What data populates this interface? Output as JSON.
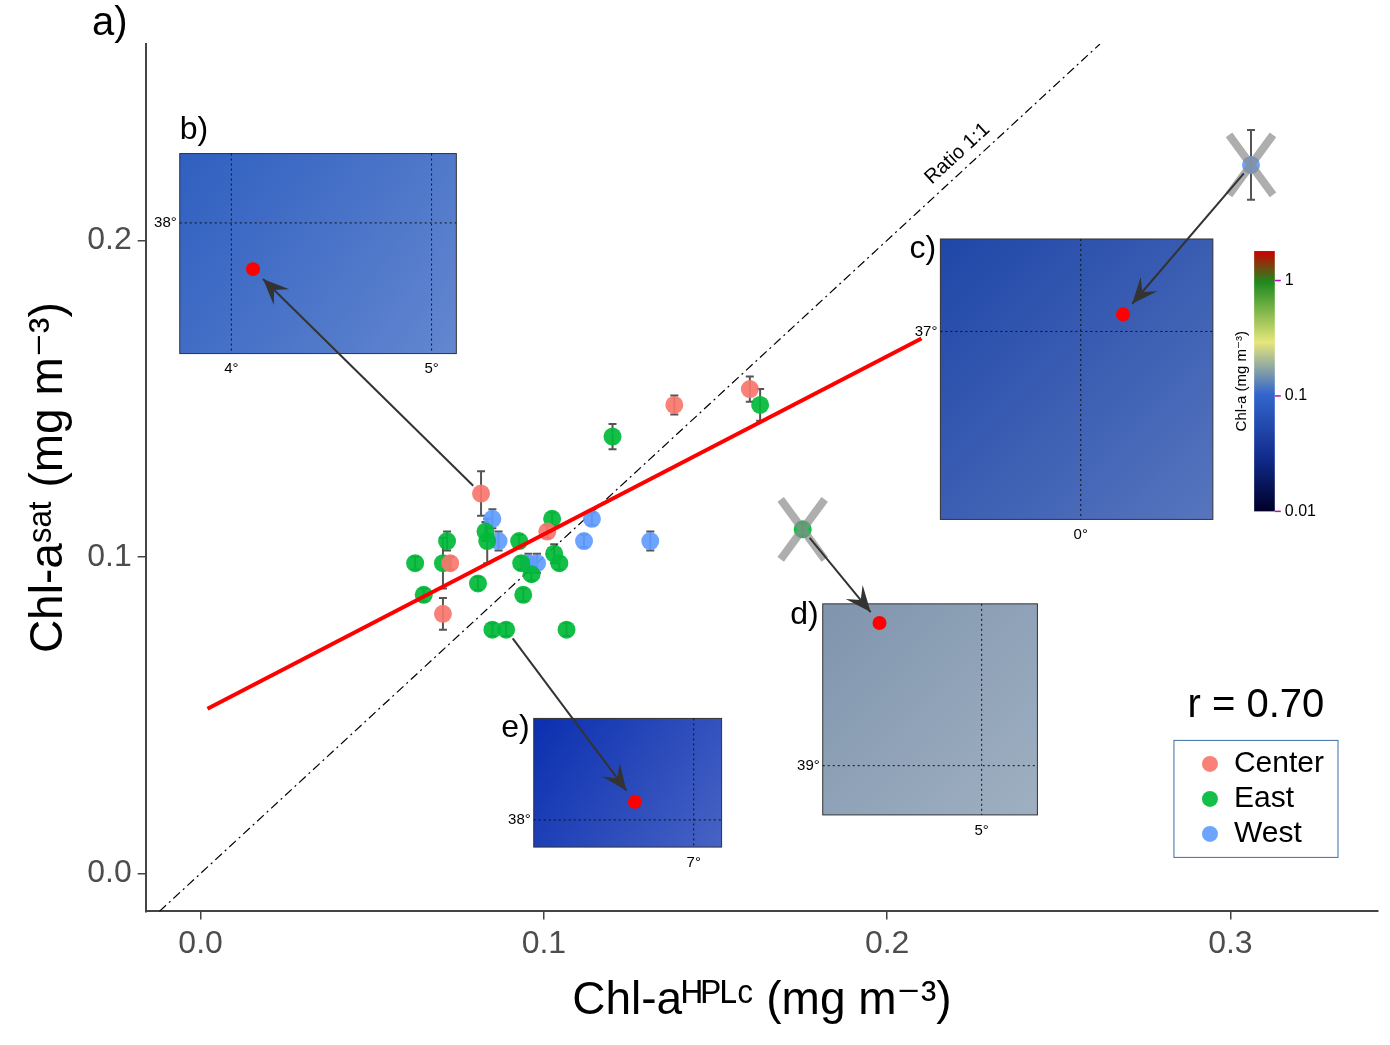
{
  "chart_data": {
    "type": "scatter",
    "panel_label": "a)",
    "x_label": "Chl-aᴴᴾᴸᶜ (mg m⁻³)",
    "y_label": "Chl-aˢᵃᵗ (mg m⁻³)",
    "xlim": [
      -0.016,
      0.343
    ],
    "ylim": [
      -0.012,
      0.262
    ],
    "xticks": [
      {
        "value": 0,
        "label": "0.0"
      },
      0.1,
      0.2,
      0.3
    ],
    "yticks": [
      {
        "value": 0,
        "label": "0.0"
      },
      0.1,
      0.2
    ],
    "grid": false,
    "legend": "bottom right",
    "series": [
      {
        "name": "Center",
        "color": "#F8766D",
        "x": [
          0.0817,
          0.138,
          0.16,
          0.0706,
          0.0727,
          0.101
        ],
        "y": [
          0.12,
          0.148,
          0.153,
          0.082,
          0.098,
          0.108
        ],
        "error": [
          0.007,
          0.003,
          0.004,
          0.005,
          0.002,
          0.002
        ],
        "excluded": [
          false,
          false,
          false,
          false,
          false,
          false
        ]
      },
      {
        "name": "East",
        "color": "#00BA38",
        "x": [
          0.163,
          0.12,
          0.0625,
          0.065,
          0.0718,
          0.0706,
          0.0808,
          0.083,
          0.0835,
          0.0928,
          0.0934,
          0.094,
          0.0964,
          0.1024,
          0.103,
          0.1045,
          0.085,
          0.089,
          0.1066,
          0.1754
        ],
        "y": [
          0.148,
          0.138,
          0.098,
          0.088,
          0.105,
          0.098,
          0.0916,
          0.108,
          0.105,
          0.105,
          0.098,
          0.088,
          0.0945,
          0.112,
          0.101,
          0.098,
          0.077,
          0.077,
          0.077,
          0.1087
        ],
        "error": [
          0.005,
          0.004,
          0.002,
          0.002,
          0.003,
          0.008,
          0.002,
          0.003,
          0.007,
          0.002,
          0.002,
          0.002,
          0.002,
          0.002,
          0.003,
          0.002,
          0.002,
          0.002,
          0.002,
          0.002
        ],
        "excluded": [
          false,
          false,
          false,
          false,
          false,
          false,
          false,
          false,
          false,
          false,
          false,
          false,
          false,
          false,
          false,
          false,
          false,
          false,
          false,
          true
        ]
      },
      {
        "name": "West",
        "color": "#619CFF",
        "x": [
          0.085,
          0.0868,
          0.0955,
          0.098,
          0.1117,
          0.114,
          0.131,
          0.306
        ],
        "y": [
          0.112,
          0.105,
          0.098,
          0.098,
          0.105,
          0.112,
          0.105,
          0.2238
        ],
        "error": [
          0.003,
          0.003,
          0.003,
          0.003,
          0.002,
          0.002,
          0.003,
          0.011
        ],
        "excluded": [
          false,
          false,
          false,
          false,
          false,
          false,
          false,
          true
        ]
      }
    ],
    "fit_line": {
      "color": "#ff0000",
      "x": [
        0.002,
        0.21
      ],
      "y": [
        0.052,
        0.169
      ]
    },
    "reference_line": {
      "label": "Ratio 1:1",
      "line_style": "dashdot",
      "color": "#000000",
      "x": [
        -0.012,
        0.262
      ],
      "y": [
        -0.012,
        0.262
      ]
    },
    "annotations": [
      {
        "text": "r = 0.70"
      }
    ],
    "insets": [
      {
        "label": "b)",
        "color": "#2f5fc0",
        "lat_labels": [
          "38°"
        ],
        "lon_labels": [
          "4°",
          "5°"
        ],
        "points_to": {
          "series": "Center",
          "index": 0
        }
      },
      {
        "label": "c)",
        "color": "#1f47a8",
        "lat_labels": [
          "37°"
        ],
        "lon_labels": [
          "0°"
        ],
        "points_to": {
          "series": "West",
          "index": 7
        }
      },
      {
        "label": "d)",
        "color": "#7f95ad",
        "lat_labels": [
          "39°"
        ],
        "lon_labels": [
          "5°"
        ],
        "points_to": {
          "series": "East",
          "index": 19
        }
      },
      {
        "label": "e)",
        "color": "#0a2fb0",
        "lat_labels": [
          "38°"
        ],
        "lon_labels": [
          "7°"
        ],
        "points_to": {
          "series": "East",
          "index": 17
        }
      }
    ],
    "colorbar": {
      "label": "Chl-a (mg m⁻³)",
      "range": [
        0.01,
        1.8
      ],
      "ticks": [
        0.01,
        0.1,
        1
      ],
      "log": true
    }
  }
}
